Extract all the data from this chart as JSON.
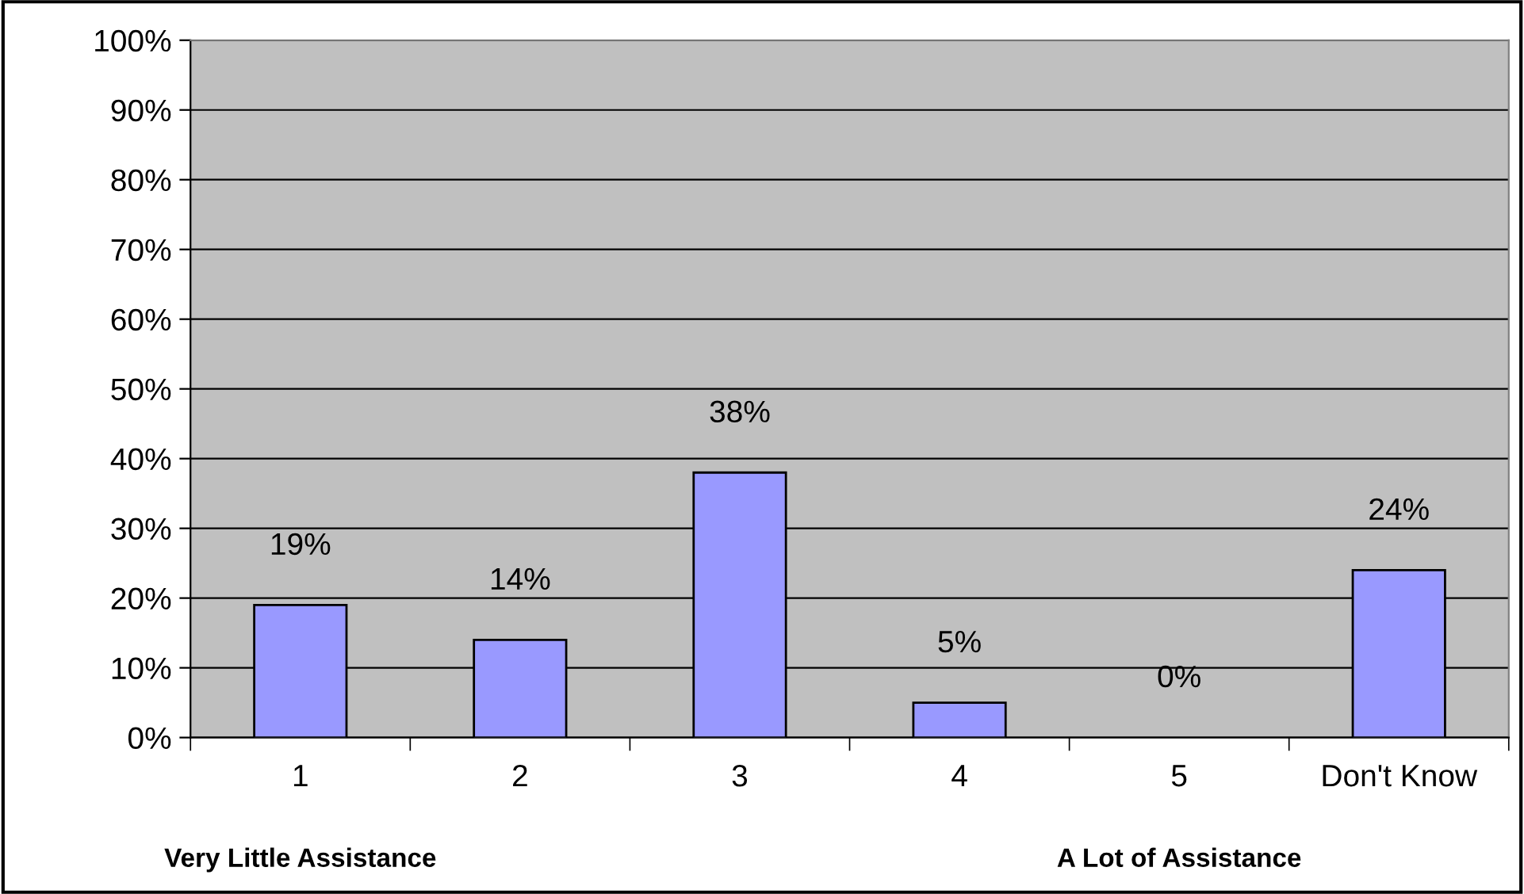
{
  "chart_data": {
    "type": "bar",
    "categories": [
      "1",
      "2",
      "3",
      "4",
      "5",
      "Don't Know"
    ],
    "values": [
      19,
      14,
      38,
      5,
      0,
      24
    ],
    "value_labels": [
      "19%",
      "14%",
      "38%",
      "5%",
      "0%",
      "24%"
    ],
    "color": "#9999ff",
    "ylim": [
      0,
      100
    ],
    "yticks": [
      {
        "value": 0,
        "label": "0%"
      },
      {
        "value": 10,
        "label": "10%"
      },
      {
        "value": 20,
        "label": "20%"
      },
      {
        "value": 30,
        "label": "30%"
      },
      {
        "value": 40,
        "label": "40%"
      },
      {
        "value": 50,
        "label": "50%"
      },
      {
        "value": 60,
        "label": "60%"
      },
      {
        "value": 70,
        "label": "70%"
      },
      {
        "value": 80,
        "label": "80%"
      },
      {
        "value": 90,
        "label": "90%"
      },
      {
        "value": 100,
        "label": "100%"
      }
    ],
    "grid": "y",
    "legend": false,
    "annotations": [
      "Very Little Assistance",
      "A Lot of Assistance"
    ]
  }
}
